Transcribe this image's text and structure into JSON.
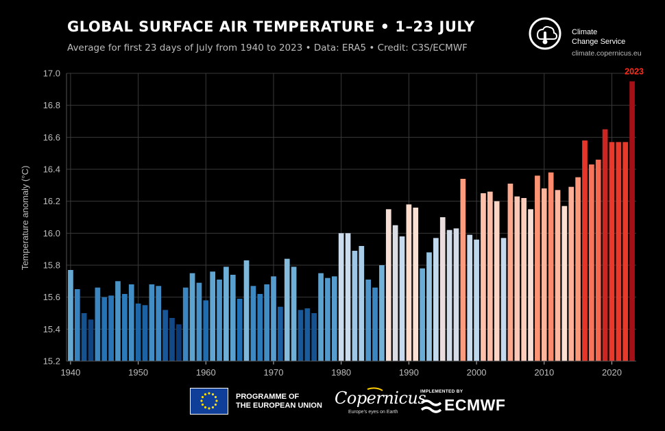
{
  "header": {
    "title": "GLOBAL SURFACE AIR TEMPERATURE • 1–23 JULY",
    "subtitle": "Average for first 23 days of July from 1940 to 2023 • Data: ERA5 • Credit: C3S/ECMWF"
  },
  "logos": {
    "c3s_name_line1": "Climate",
    "c3s_name_line2": "Change Service",
    "c3s_url": "climate.copernicus.eu",
    "eu_line1": "PROGRAMME OF",
    "eu_line2": "THE EUROPEAN UNION",
    "copernicus_word": "Copernicus",
    "copernicus_tagline": "Europe's eyes on Earth",
    "implemented_by": "IMPLEMENTED BY",
    "ecmwf_word": "ECMWF"
  },
  "chart_data": {
    "type": "bar",
    "title": "GLOBAL SURFACE AIR TEMPERATURE • 1–23 JULY",
    "ylabel": "Temperature anomaly (°C)",
    "xlabel": "",
    "ylim": [
      15.2,
      17.0
    ],
    "xlim": [
      1939.4,
      1924.6
    ],
    "yticks": [
      "15.2",
      "15.4",
      "15.6",
      "15.8",
      "16.0",
      "16.2",
      "16.4",
      "16.6",
      "16.8",
      "17.0"
    ],
    "xticks": [
      "1940",
      "1950",
      "1960",
      "1970",
      "1980",
      "1990",
      "2000",
      "2010",
      "2020"
    ],
    "grid": true,
    "highlight_label": "2023",
    "highlight_color": "#ff2a1a",
    "color_scale": [
      "#08306b",
      "#2171b5",
      "#6baed6",
      "#c6dbef",
      "#fee0d2",
      "#fc9272",
      "#ef3b2c",
      "#a50f15"
    ],
    "x": [
      1940,
      1941,
      1942,
      1943,
      1944,
      1945,
      1946,
      1947,
      1948,
      1949,
      1950,
      1951,
      1952,
      1953,
      1954,
      1955,
      1956,
      1957,
      1958,
      1959,
      1960,
      1961,
      1962,
      1963,
      1964,
      1965,
      1966,
      1967,
      1968,
      1969,
      1970,
      1971,
      1972,
      1973,
      1974,
      1975,
      1976,
      1977,
      1978,
      1979,
      1980,
      1981,
      1982,
      1983,
      1984,
      1985,
      1986,
      1987,
      1988,
      1989,
      1990,
      1991,
      1992,
      1993,
      1994,
      1995,
      1996,
      1997,
      1998,
      1999,
      2000,
      2001,
      2002,
      2003,
      2004,
      2005,
      2006,
      2007,
      2008,
      2009,
      2010,
      2011,
      2012,
      2013,
      2014,
      2015,
      2016,
      2017,
      2018,
      2019,
      2020,
      2021,
      2022,
      2023
    ],
    "values": [
      15.77,
      15.65,
      15.5,
      15.46,
      15.66,
      15.6,
      15.61,
      15.7,
      15.62,
      15.68,
      15.56,
      15.55,
      15.68,
      15.67,
      15.52,
      15.47,
      15.43,
      15.66,
      15.75,
      15.69,
      15.58,
      15.76,
      15.71,
      15.79,
      15.74,
      15.59,
      15.83,
      15.67,
      15.62,
      15.68,
      15.73,
      15.54,
      15.84,
      15.79,
      15.52,
      15.53,
      15.5,
      15.75,
      15.72,
      15.73,
      16.0,
      16.0,
      15.89,
      15.92,
      15.71,
      15.66,
      15.8,
      16.15,
      16.05,
      15.98,
      16.18,
      16.16,
      15.78,
      15.88,
      15.97,
      16.1,
      16.02,
      16.03,
      16.34,
      15.99,
      15.96,
      16.25,
      16.26,
      16.2,
      15.97,
      16.31,
      16.23,
      16.22,
      16.15,
      16.36,
      16.28,
      16.38,
      16.27,
      16.17,
      16.29,
      16.35,
      16.58,
      16.43,
      16.46,
      16.65,
      16.57,
      16.57,
      16.57,
      16.95
    ]
  }
}
